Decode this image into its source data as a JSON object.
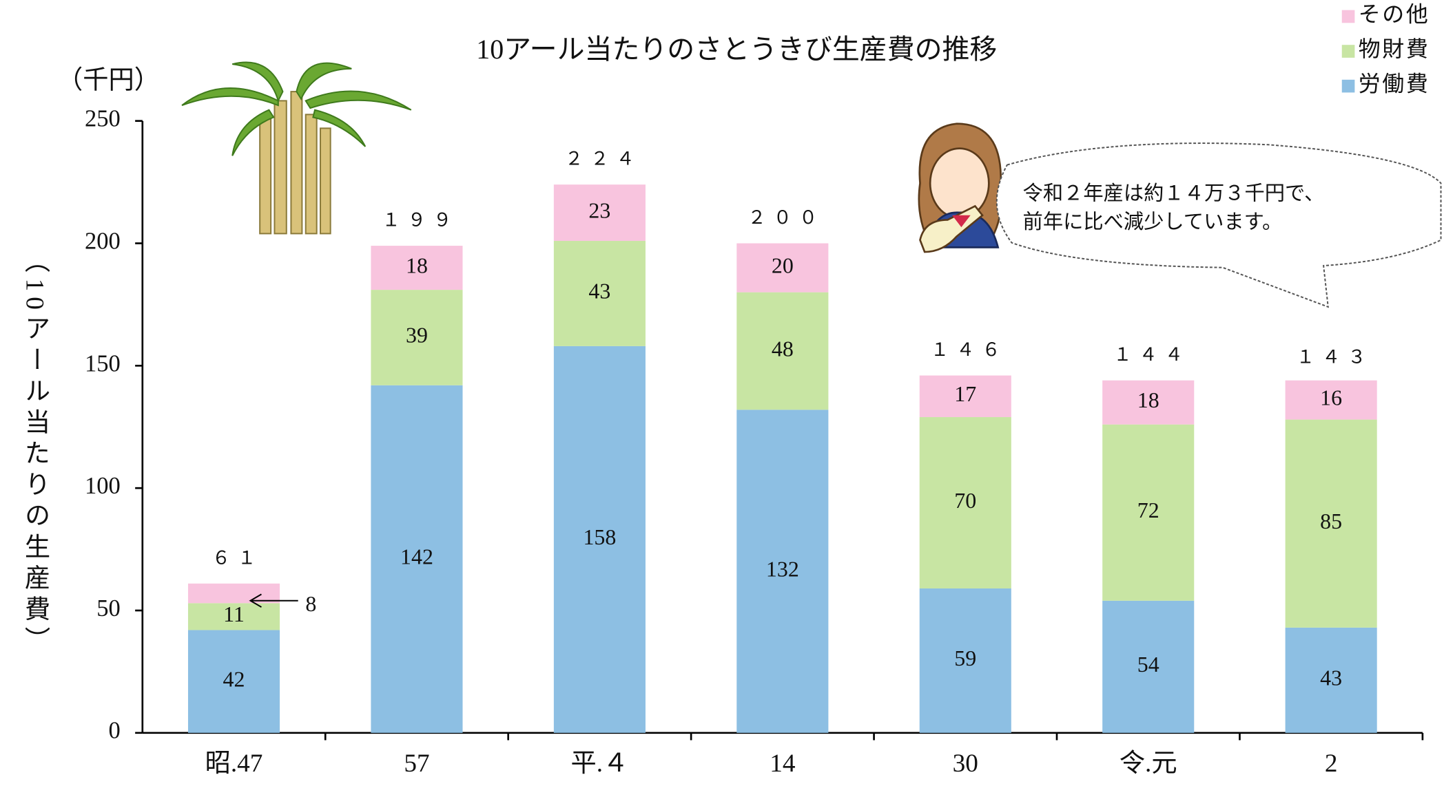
{
  "chart_data": {
    "type": "stacked-bar",
    "title": "10アール当たりのさとうきび生産費の推移",
    "y_unit": "（千円）",
    "y_label": "（10アール当たりの生産費）",
    "categories": [
      "昭.47",
      "57",
      "平.４",
      "14",
      "30",
      "令.元",
      "2"
    ],
    "series": [
      {
        "name": "労働費",
        "color": "#8dbfe3",
        "values": [
          42,
          142,
          158,
          132,
          59,
          54,
          43
        ]
      },
      {
        "name": "物財費",
        "color": "#c8e5a3",
        "values": [
          11,
          39,
          43,
          48,
          70,
          72,
          85
        ]
      },
      {
        "name": "その他",
        "color": "#f8c4de",
        "values": [
          8,
          18,
          23,
          20,
          17,
          18,
          16
        ]
      }
    ],
    "totals": [
      61,
      199,
      224,
      200,
      146,
      144,
      143
    ],
    "total_labels": [
      "６１",
      "１９９",
      "２２４",
      "２００",
      "１４６",
      "１４４",
      "１４３"
    ],
    "ylim": [
      0,
      250
    ],
    "yticks": [
      0,
      50,
      100,
      150,
      200,
      250
    ],
    "annotations": [
      "令和２年産は約１４万３千円で、",
      "前年に比べ減少しています。"
    ]
  }
}
